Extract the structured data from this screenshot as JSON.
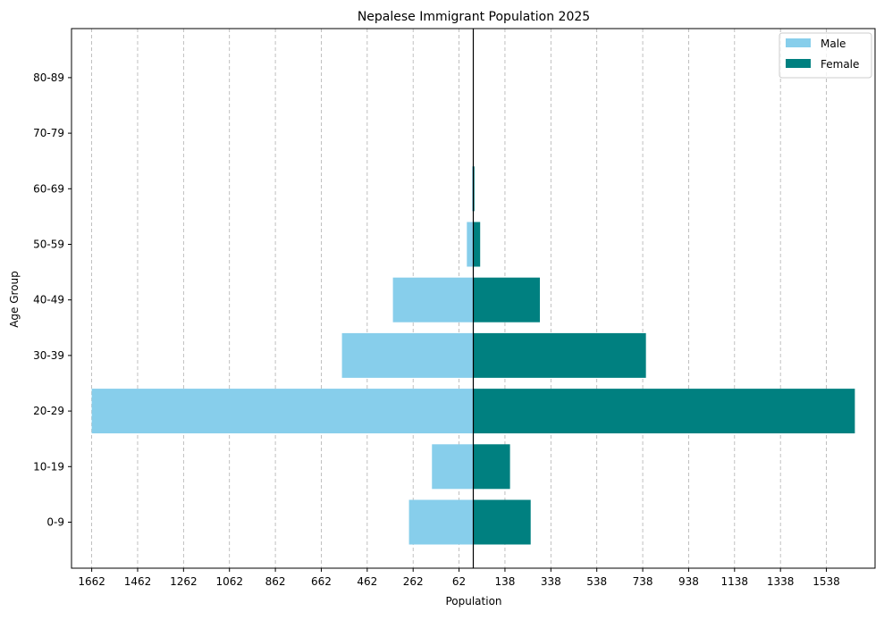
{
  "chart_data": {
    "type": "bar",
    "orientation": "horizontal",
    "layout": "population-pyramid",
    "title": "Nepalese Immigrant Population 2025",
    "xlabel": "Population",
    "ylabel": "Age Group",
    "categories": [
      "0-9",
      "10-19",
      "20-29",
      "30-39",
      "40-49",
      "50-59",
      "60-69",
      "70-79",
      "80-89"
    ],
    "series": [
      {
        "name": "Male",
        "color": "#87ceeb",
        "values": [
          -280,
          -180,
          -1662,
          -572,
          -350,
          -28,
          -5,
          0,
          0
        ]
      },
      {
        "name": "Female",
        "color": "#008080",
        "values": [
          250,
          160,
          1662,
          752,
          290,
          30,
          5,
          0,
          0
        ]
      }
    ],
    "xlim": [
      -1750,
      1750
    ],
    "x_ticks": [
      -1662,
      -1462,
      -1262,
      -1062,
      -862,
      -662,
      -462,
      -262,
      -62,
      138,
      338,
      538,
      738,
      938,
      1138,
      1338,
      1538
    ],
    "x_tick_labels": [
      "1662",
      "1462",
      "1262",
      "1062",
      "862",
      "662",
      "462",
      "262",
      "62",
      "138",
      "338",
      "538",
      "738",
      "938",
      "1138",
      "1338",
      "1538"
    ],
    "grid": {
      "x": true,
      "y": false,
      "style": "dashed"
    },
    "legend": {
      "position": "top-right"
    },
    "center_line_color": "#000000"
  }
}
